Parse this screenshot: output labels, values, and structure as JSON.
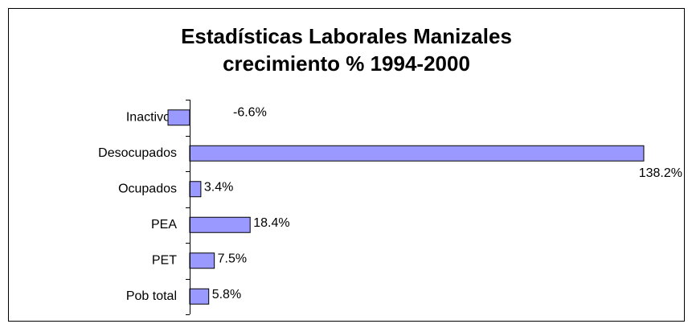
{
  "chart_data": {
    "type": "barh",
    "title": "Estadísticas Laborales Manizales",
    "subtitle": "crecimiento % 1994-2000",
    "categories": [
      "Inactivos",
      "Desocupados",
      "Ocupados",
      "PEA",
      "PET",
      "Pob total"
    ],
    "values": [
      -6.6,
      138.2,
      3.4,
      18.4,
      7.5,
      5.8
    ],
    "value_labels": [
      "-6.6%",
      "138.2%",
      "3.4%",
      "18.4%",
      "7.5%",
      "5.8%"
    ],
    "color": "#9999ff"
  }
}
